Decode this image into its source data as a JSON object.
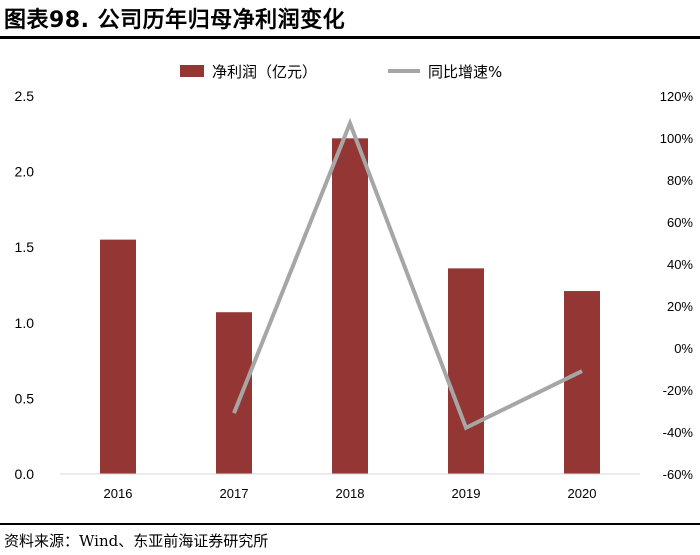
{
  "header": {
    "title": "图表98. 公司历年归母净利润变化"
  },
  "footer": {
    "source": "资料来源：Wind、东亚前海证券研究所"
  },
  "colors": {
    "bar": "#943634",
    "line": "#a6a6a6"
  },
  "chart_data": {
    "type": "bar",
    "categories": [
      "2016",
      "2017",
      "2018",
      "2019",
      "2020"
    ],
    "series": [
      {
        "name": "净利润（亿元）",
        "type": "bar",
        "axis": "left",
        "values": [
          1.55,
          1.07,
          2.22,
          1.36,
          1.21
        ]
      },
      {
        "name": "同比增速%",
        "type": "line",
        "axis": "right",
        "values": [
          null,
          -31,
          107,
          -38,
          -11
        ]
      }
    ],
    "ylim": [
      0,
      2.5
    ],
    "yticks": [
      "0.0",
      "0.5",
      "1.0",
      "1.5",
      "2.0",
      "2.5"
    ],
    "y2lim": [
      -60,
      120
    ],
    "y2ticks": [
      "-60%",
      "-40%",
      "-20%",
      "0%",
      "20%",
      "40%",
      "60%",
      "80%",
      "100%",
      "120%"
    ],
    "legend_position": "top-center",
    "grid": false
  }
}
